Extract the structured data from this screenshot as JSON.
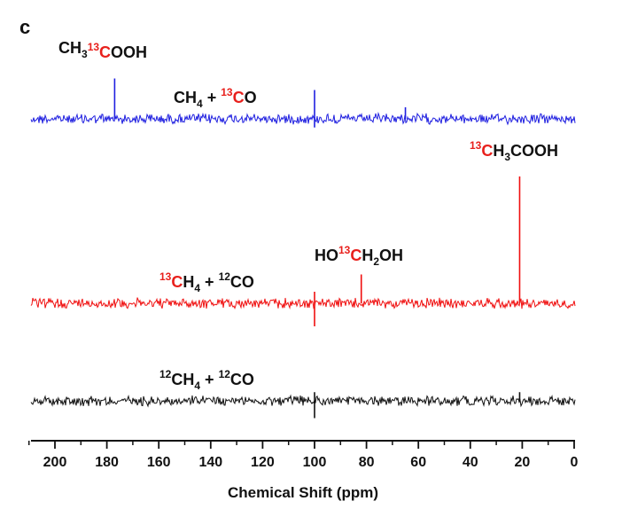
{
  "panel_letter": "c",
  "chart_data": {
    "type": "line",
    "xlabel": "Chemical Shift (ppm)",
    "xlim": [
      210,
      0
    ],
    "x_ticks": [
      200,
      180,
      160,
      140,
      120,
      100,
      80,
      60,
      40,
      20,
      0
    ],
    "x_minor_step": 10,
    "series": [
      {
        "label_parts": [
          {
            "t": "CH",
            "k": "n",
            "c": "black"
          },
          {
            "t": "4",
            "k": "sub",
            "c": "black"
          },
          {
            "t": " + ",
            "k": "n",
            "c": "black"
          },
          {
            "t": "13",
            "k": "sup",
            "c": "red"
          },
          {
            "t": "C",
            "k": "n",
            "c": "red"
          },
          {
            "t": "O",
            "k": "n",
            "c": "black"
          }
        ],
        "color": "#1f1fe0",
        "baseline_level": 3,
        "peaks": [
          {
            "x": 177,
            "height": 7.0
          },
          {
            "x": 100,
            "height": 5.0,
            "depth": 1.5
          },
          {
            "x": 65,
            "height": 2.0
          }
        ],
        "annotations": [
          {
            "x": 177,
            "parts": [
              {
                "t": "CH",
                "k": "n",
                "c": "black"
              },
              {
                "t": "3",
                "k": "sub",
                "c": "black"
              },
              {
                "t": "13",
                "k": "sup",
                "c": "red"
              },
              {
                "t": "C",
                "k": "n",
                "c": "red"
              },
              {
                "t": "OOH",
                "k": "n",
                "c": "black"
              }
            ]
          }
        ]
      },
      {
        "label_parts": [
          {
            "t": "13",
            "k": "sup",
            "c": "red"
          },
          {
            "t": "C",
            "k": "n",
            "c": "red"
          },
          {
            "t": "H",
            "k": "n",
            "c": "black"
          },
          {
            "t": "4",
            "k": "sub",
            "c": "black"
          },
          {
            "t": " + ",
            "k": "n",
            "c": "black"
          },
          {
            "t": "12",
            "k": "sup",
            "c": "black"
          },
          {
            "t": "CO",
            "k": "n",
            "c": "black"
          }
        ],
        "color": "#f01010",
        "baseline_level": 2,
        "peaks": [
          {
            "x": 21,
            "height": 22.0
          },
          {
            "x": 82,
            "height": 5.0
          },
          {
            "x": 100,
            "height": 2.0,
            "depth": 4.0
          }
        ],
        "annotations": [
          {
            "x": 21,
            "parts": [
              {
                "t": "13",
                "k": "sup",
                "c": "red"
              },
              {
                "t": "C",
                "k": "n",
                "c": "red"
              },
              {
                "t": "H",
                "k": "n",
                "c": "black"
              },
              {
                "t": "3",
                "k": "sub",
                "c": "black"
              },
              {
                "t": "COOH",
                "k": "n",
                "c": "black"
              }
            ]
          },
          {
            "x": 82,
            "parts": [
              {
                "t": "HO",
                "k": "n",
                "c": "black"
              },
              {
                "t": "13",
                "k": "sup",
                "c": "red"
              },
              {
                "t": "C",
                "k": "n",
                "c": "red"
              },
              {
                "t": "H",
                "k": "n",
                "c": "black"
              },
              {
                "t": "2",
                "k": "sub",
                "c": "black"
              },
              {
                "t": "OH",
                "k": "n",
                "c": "black"
              }
            ]
          }
        ]
      },
      {
        "label_parts": [
          {
            "t": "12",
            "k": "sup",
            "c": "black"
          },
          {
            "t": "CH",
            "k": "n",
            "c": "black"
          },
          {
            "t": "4",
            "k": "sub",
            "c": "black"
          },
          {
            "t": " + ",
            "k": "n",
            "c": "black"
          },
          {
            "t": "12",
            "k": "sup",
            "c": "black"
          },
          {
            "t": "CO",
            "k": "n",
            "c": "black"
          }
        ],
        "color": "#111111",
        "baseline_level": 1,
        "peaks": [
          {
            "x": 100,
            "height": 1.5,
            "depth": 3.0
          },
          {
            "x": 21,
            "height": 1.5
          }
        ],
        "annotations": []
      }
    ],
    "grid": false
  }
}
